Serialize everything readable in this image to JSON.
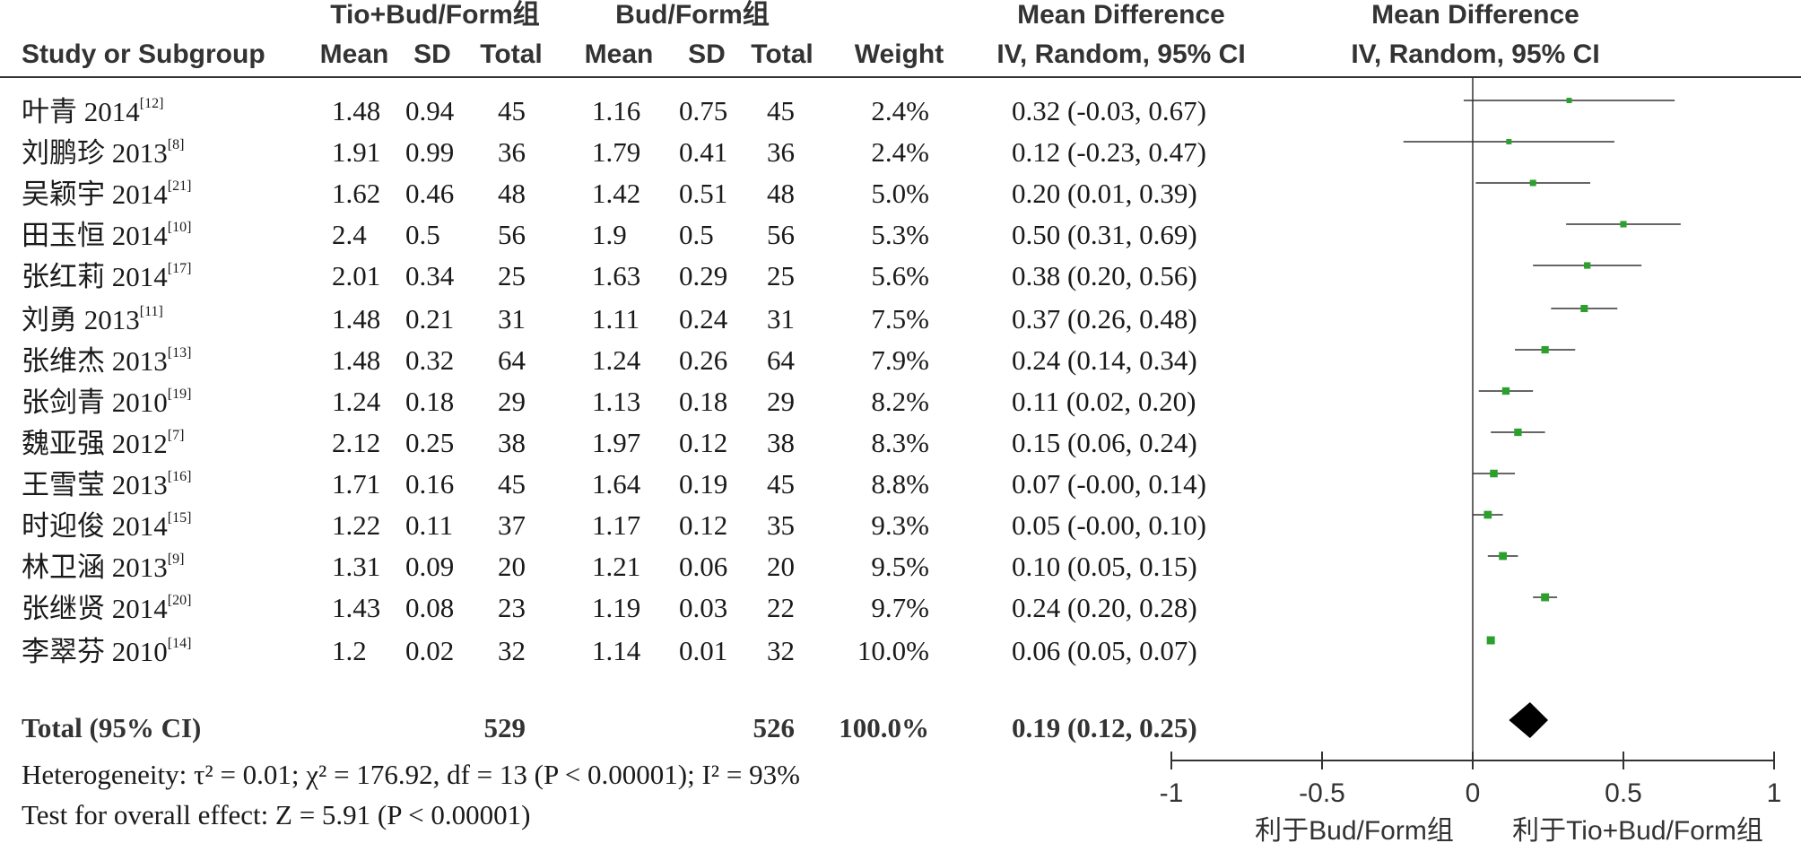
{
  "header": {
    "group1": "Tio+Bud/Form组",
    "group2": "Bud/Form组",
    "md_title": "Mean Difference",
    "md_method": "IV, Random, 95% CI",
    "md_title_plot": "Mean Difference",
    "md_method_plot": "IV, Random, 95% CI",
    "study_col": "Study or Subgroup",
    "mean1": "Mean",
    "sd1": "SD",
    "total1": "Total",
    "mean2": "Mean",
    "sd2": "SD",
    "total2": "Total",
    "weight": "Weight"
  },
  "studies": [
    {
      "name": "叶青 2014",
      "ref": "[12]",
      "mean1": "1.48",
      "sd1": "0.94",
      "n1": "45",
      "mean2": "1.16",
      "sd2": "0.75",
      "n2": "45",
      "weight": "2.4%",
      "ci_text": "0.32 (-0.03, 0.67)"
    },
    {
      "name": "刘鹏珍 2013",
      "ref": "[8]",
      "mean1": "1.91",
      "sd1": "0.99",
      "n1": "36",
      "mean2": "1.79",
      "sd2": "0.41",
      "n2": "36",
      "weight": "2.4%",
      "ci_text": "0.12 (-0.23, 0.47)"
    },
    {
      "name": "吴颖宇 2014",
      "ref": "[21]",
      "mean1": "1.62",
      "sd1": "0.46",
      "n1": "48",
      "mean2": "1.42",
      "sd2": "0.51",
      "n2": "48",
      "weight": "5.0%",
      "ci_text": "0.20 (0.01, 0.39)"
    },
    {
      "name": "田玉恒 2014",
      "ref": "[10]",
      "mean1": "2.4",
      "sd1": "0.5",
      "n1": "56",
      "mean2": "1.9",
      "sd2": "0.5",
      "n2": "56",
      "weight": "5.3%",
      "ci_text": "0.50 (0.31, 0.69)"
    },
    {
      "name": "张红莉 2014",
      "ref": "[17]",
      "mean1": "2.01",
      "sd1": "0.34",
      "n1": "25",
      "mean2": "1.63",
      "sd2": "0.29",
      "n2": "25",
      "weight": "5.6%",
      "ci_text": "0.38 (0.20, 0.56)"
    },
    {
      "name": "刘勇 2013",
      "ref": "[11]",
      "mean1": "1.48",
      "sd1": "0.21",
      "n1": "31",
      "mean2": "1.11",
      "sd2": "0.24",
      "n2": "31",
      "weight": "7.5%",
      "ci_text": "0.37 (0.26, 0.48)"
    },
    {
      "name": "张维杰 2013",
      "ref": "[13]",
      "mean1": "1.48",
      "sd1": "0.32",
      "n1": "64",
      "mean2": "1.24",
      "sd2": "0.26",
      "n2": "64",
      "weight": "7.9%",
      "ci_text": "0.24 (0.14, 0.34)"
    },
    {
      "name": "张剑青 2010",
      "ref": "[19]",
      "mean1": "1.24",
      "sd1": "0.18",
      "n1": "29",
      "mean2": "1.13",
      "sd2": "0.18",
      "n2": "29",
      "weight": "8.2%",
      "ci_text": "0.11 (0.02, 0.20)"
    },
    {
      "name": "魏亚强 2012",
      "ref": "[7]",
      "mean1": "2.12",
      "sd1": "0.25",
      "n1": "38",
      "mean2": "1.97",
      "sd2": "0.12",
      "n2": "38",
      "weight": "8.3%",
      "ci_text": "0.15 (0.06, 0.24)"
    },
    {
      "name": "王雪莹 2013",
      "ref": "[16]",
      "mean1": "1.71",
      "sd1": "0.16",
      "n1": "45",
      "mean2": "1.64",
      "sd2": "0.19",
      "n2": "45",
      "weight": "8.8%",
      "ci_text": "0.07 (-0.00, 0.14)"
    },
    {
      "name": "时迎俊 2014",
      "ref": "[15]",
      "mean1": "1.22",
      "sd1": "0.11",
      "n1": "37",
      "mean2": "1.17",
      "sd2": "0.12",
      "n2": "35",
      "weight": "9.3%",
      "ci_text": "0.05 (-0.00, 0.10)"
    },
    {
      "name": "林卫涵 2013",
      "ref": "[9]",
      "mean1": "1.31",
      "sd1": "0.09",
      "n1": "20",
      "mean2": "1.21",
      "sd2": "0.06",
      "n2": "20",
      "weight": "9.5%",
      "ci_text": "0.10 (0.05, 0.15)"
    },
    {
      "name": "张继贤 2014",
      "ref": "[20]",
      "mean1": "1.43",
      "sd1": "0.08",
      "n1": "23",
      "mean2": "1.19",
      "sd2": "0.03",
      "n2": "22",
      "weight": "9.7%",
      "ci_text": "0.24 (0.20, 0.28)"
    },
    {
      "name": "李翠芬 2010",
      "ref": "[14]",
      "mean1": "1.2",
      "sd1": "0.02",
      "n1": "32",
      "mean2": "1.14",
      "sd2": "0.01",
      "n2": "32",
      "weight": "10.0%",
      "ci_text": "0.06 (0.05, 0.07)"
    }
  ],
  "total": {
    "label": "Total (95% CI)",
    "n1": "529",
    "n2": "526",
    "weight": "100.0%",
    "ci_text": "0.19 (0.12, 0.25)"
  },
  "footer": {
    "heterogeneity": "Heterogeneity: τ² = 0.01; χ² = 176.92, df = 13 (P < 0.00001); I² = 93%",
    "overall": "Test for overall effect: Z = 5.91 (P < 0.00001)"
  },
  "colors": {
    "marker": "#2ca02c",
    "line": "#333333",
    "diamond": "#000000"
  },
  "chart_data": {
    "type": "forest",
    "x_ticks": [
      -1,
      -0.5,
      0,
      0.5,
      1
    ],
    "x_tick_labels": [
      "-1",
      "-0.5",
      "0",
      "0.5",
      "1"
    ],
    "xlim": [
      -1,
      1
    ],
    "left_axis_label": "利于Bud/Form组",
    "right_axis_label": "利于Tio+Bud/Form组",
    "studies": [
      {
        "name": "叶青 2014",
        "md": 0.32,
        "lo": -0.03,
        "hi": 0.67,
        "weight": 2.4
      },
      {
        "name": "刘鹏珍 2013",
        "md": 0.12,
        "lo": -0.23,
        "hi": 0.47,
        "weight": 2.4
      },
      {
        "name": "吴颖宇 2014",
        "md": 0.2,
        "lo": 0.01,
        "hi": 0.39,
        "weight": 5.0
      },
      {
        "name": "田玉恒 2014",
        "md": 0.5,
        "lo": 0.31,
        "hi": 0.69,
        "weight": 5.3
      },
      {
        "name": "张红莉 2014",
        "md": 0.38,
        "lo": 0.2,
        "hi": 0.56,
        "weight": 5.6
      },
      {
        "name": "刘勇 2013",
        "md": 0.37,
        "lo": 0.26,
        "hi": 0.48,
        "weight": 7.5
      },
      {
        "name": "张维杰 2013",
        "md": 0.24,
        "lo": 0.14,
        "hi": 0.34,
        "weight": 7.9
      },
      {
        "name": "张剑青 2010",
        "md": 0.11,
        "lo": 0.02,
        "hi": 0.2,
        "weight": 8.2
      },
      {
        "name": "魏亚强 2012",
        "md": 0.15,
        "lo": 0.06,
        "hi": 0.24,
        "weight": 8.3
      },
      {
        "name": "王雪莹 2013",
        "md": 0.07,
        "lo": 0.0,
        "hi": 0.14,
        "weight": 8.8
      },
      {
        "name": "时迎俊 2014",
        "md": 0.05,
        "lo": 0.0,
        "hi": 0.1,
        "weight": 9.3
      },
      {
        "name": "林卫涵 2013",
        "md": 0.1,
        "lo": 0.05,
        "hi": 0.15,
        "weight": 9.5
      },
      {
        "name": "张继贤 2014",
        "md": 0.24,
        "lo": 0.2,
        "hi": 0.28,
        "weight": 9.7
      },
      {
        "name": "李翠芬 2010",
        "md": 0.06,
        "lo": 0.05,
        "hi": 0.07,
        "weight": 10.0
      }
    ],
    "pooled": {
      "md": 0.19,
      "lo": 0.12,
      "hi": 0.25
    }
  }
}
